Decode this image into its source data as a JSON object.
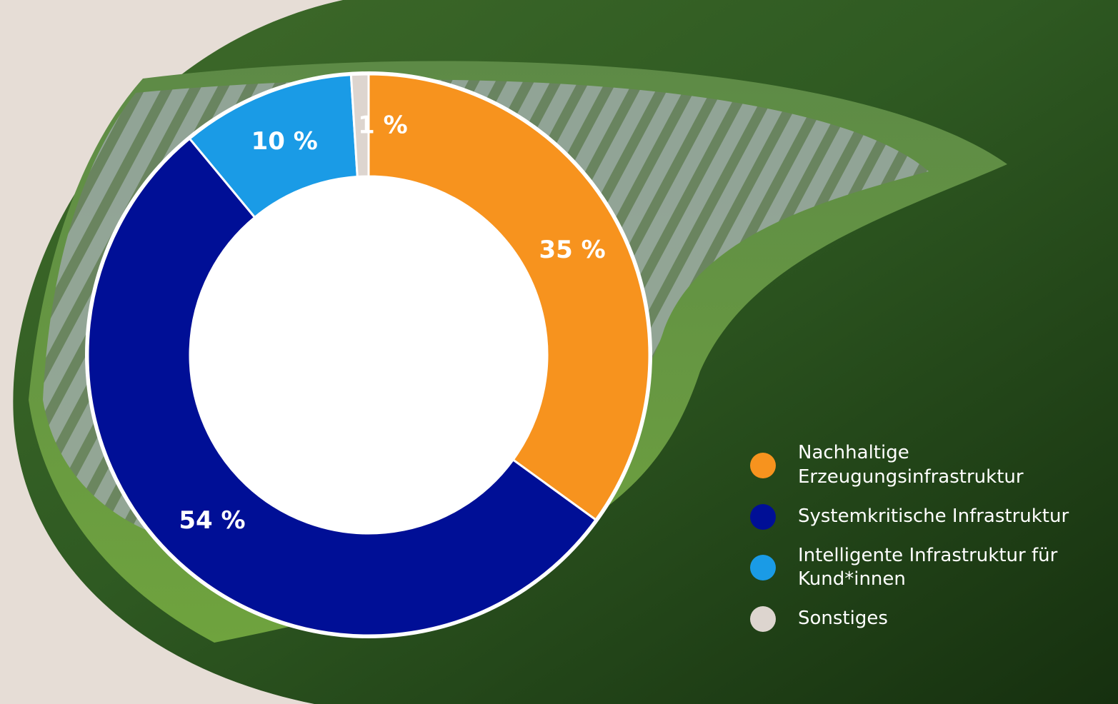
{
  "chart_data": {
    "type": "donut",
    "categories": [
      "Nachhaltige Erzeugungsinfrastruktur",
      "Systemkritische Infrastruktur",
      "Intelligente Infrastruktur für Kund*innen",
      "Sonstiges"
    ],
    "values": [
      35,
      54,
      10,
      1
    ],
    "value_labels": [
      "35 %",
      "54 %",
      "10 %",
      "1 %"
    ],
    "colors": [
      "#f7931e",
      "#000f96",
      "#1a9be6",
      "#ddd5cf"
    ],
    "legend": "right"
  }
}
